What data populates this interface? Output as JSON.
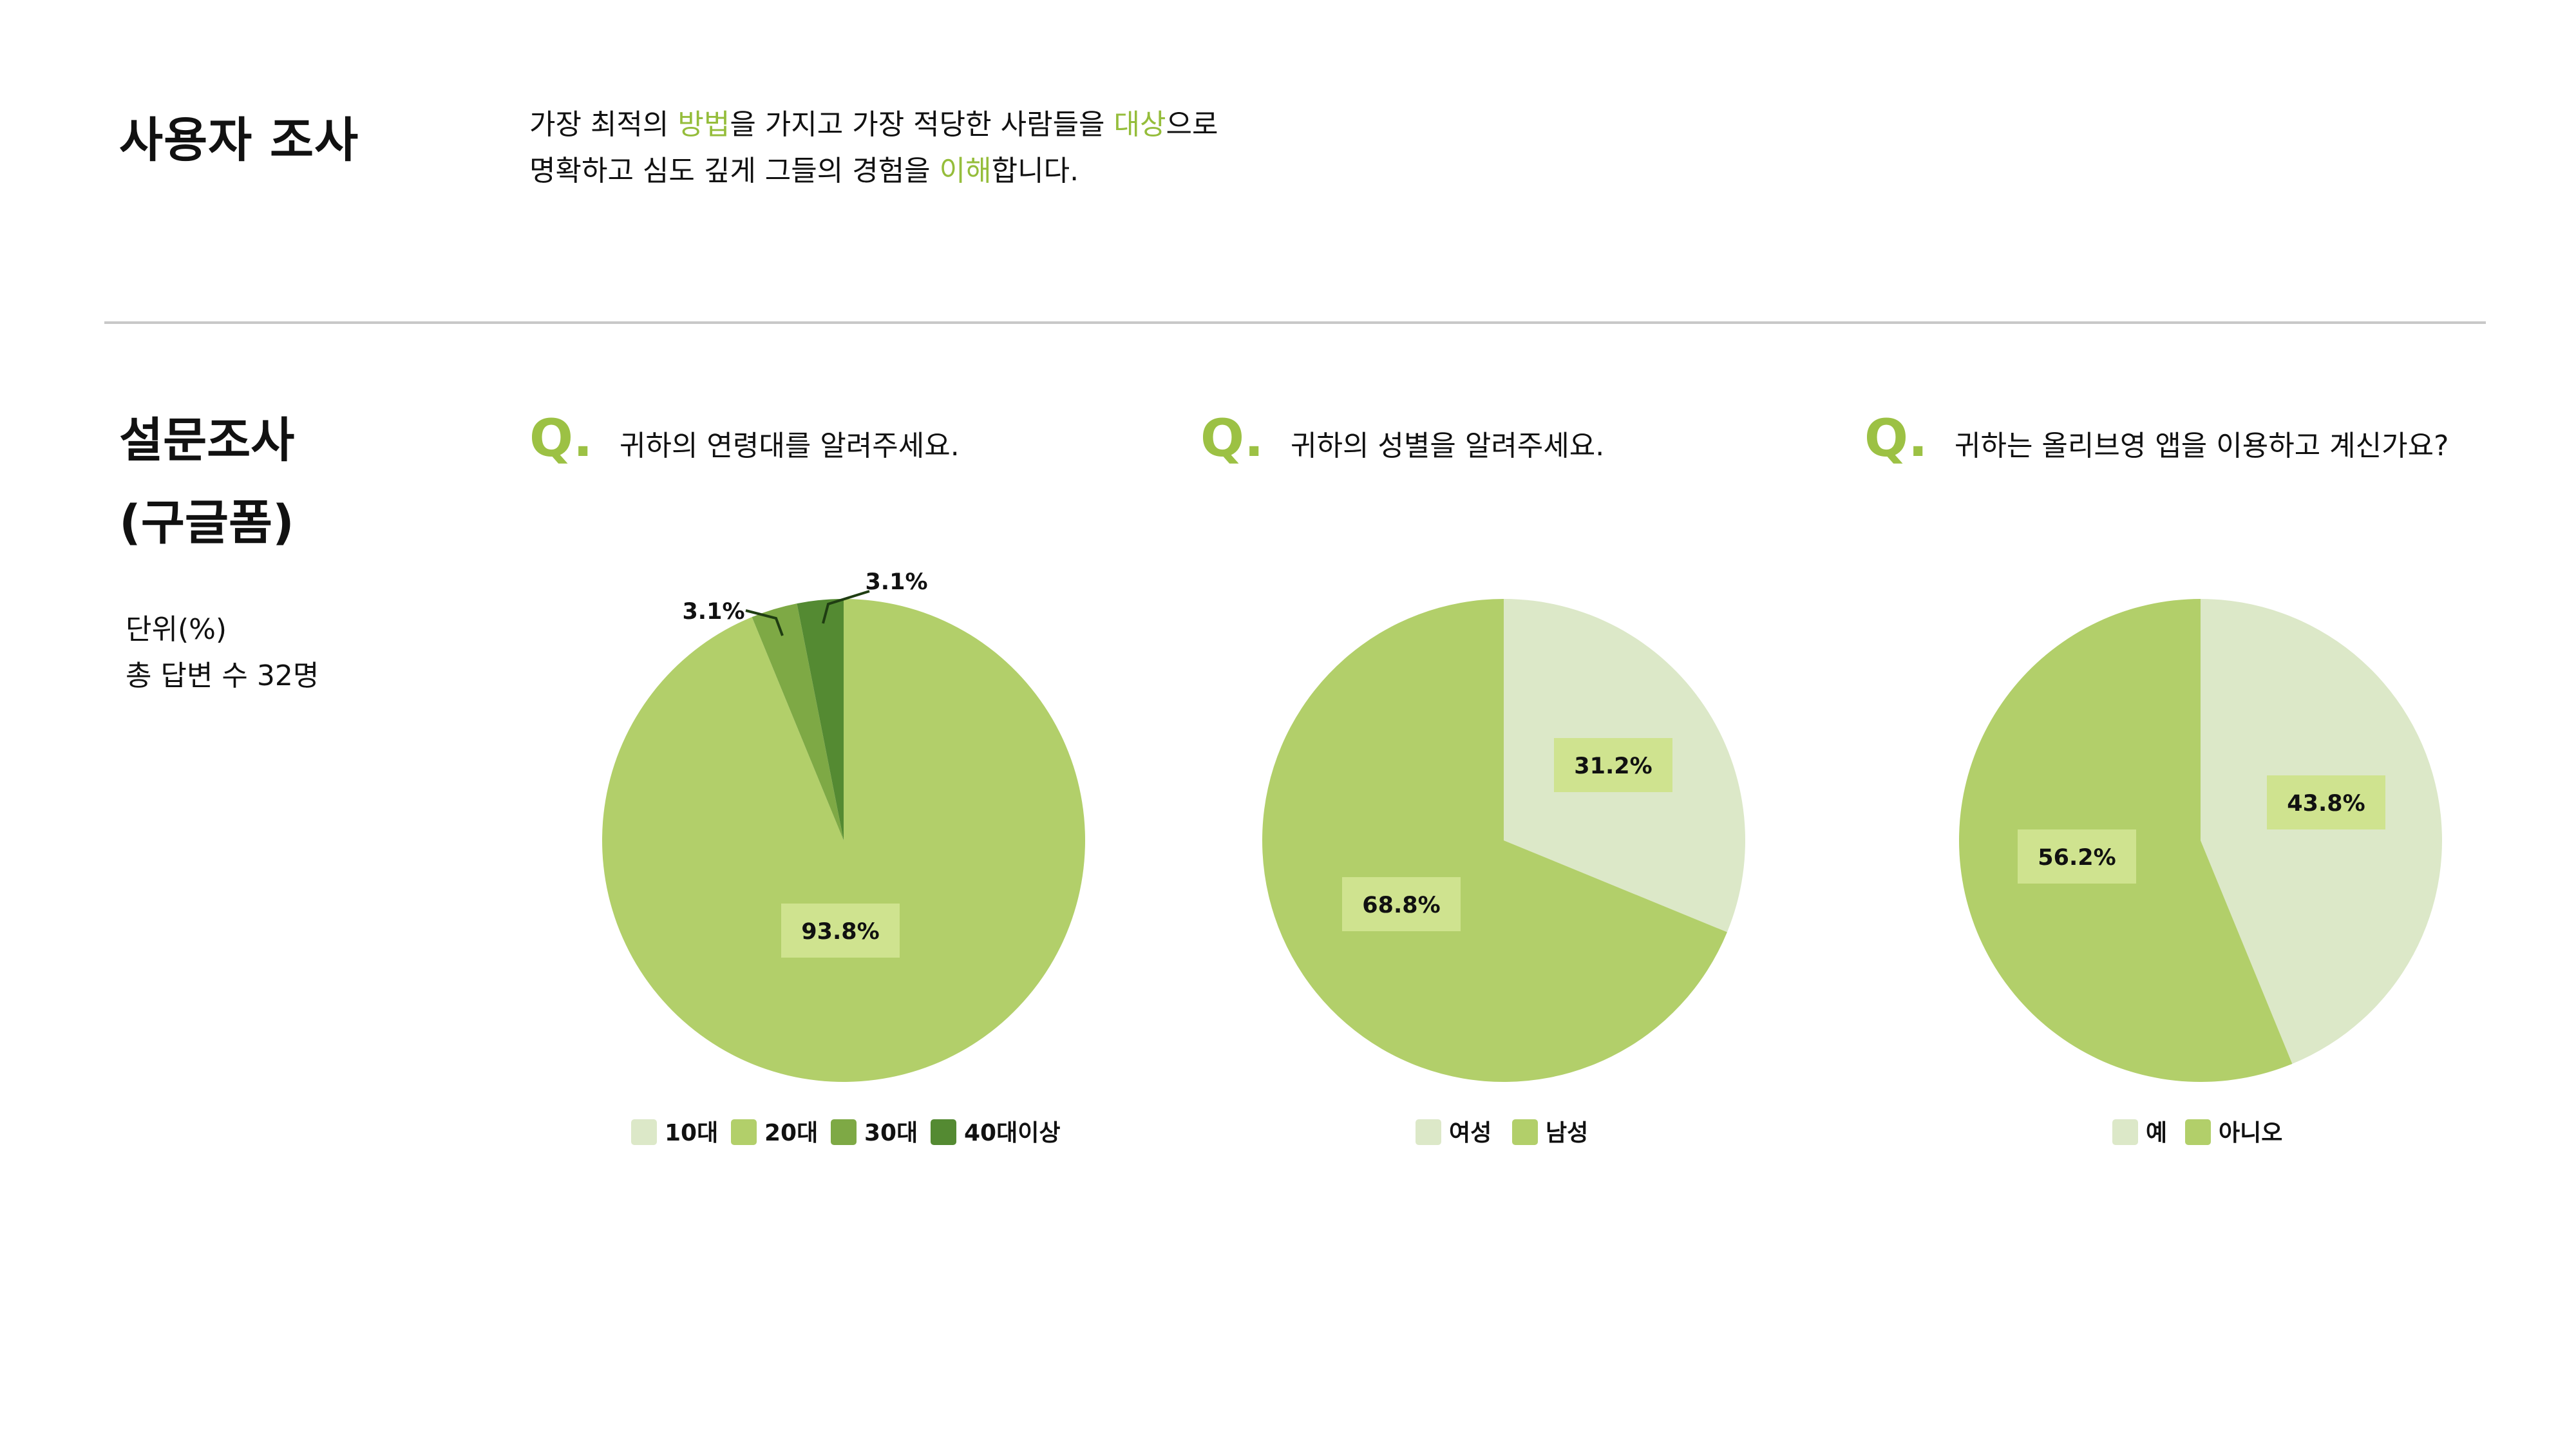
{
  "header": {
    "title": "사용자 조사",
    "intro_line1": [
      {
        "text": "가장 최적의 ",
        "accent": false
      },
      {
        "text": "방법",
        "accent": true
      },
      {
        "text": "을 가지고 가장 적당한 사람들을 ",
        "accent": false
      },
      {
        "text": "대상",
        "accent": true
      },
      {
        "text": "으로",
        "accent": false
      }
    ],
    "intro_line2": [
      {
        "text": "명확하고 심도 깊게 그들의 경험을 ",
        "accent": false
      },
      {
        "text": "이해",
        "accent": true
      },
      {
        "text": "합니다.",
        "accent": false
      }
    ]
  },
  "survey": {
    "title_line1": "설문조사",
    "title_line2": "(구글폼)",
    "unit": "단위(%)",
    "total": "총 답변 수 32명"
  },
  "colors": {
    "accent": "#95bd3b",
    "q_mark": "#9cc144",
    "light": "#dce8c8",
    "main": "#b2cf6a",
    "mid": "#7ea945",
    "dark": "#548a32",
    "label_box": "#cfe38f"
  },
  "chart_data": [
    {
      "type": "pie",
      "q_mark": "Q.",
      "title": "귀하의 연령대를 알려주세요.",
      "categories": [
        "10대",
        "20대",
        "30대",
        "40대이상"
      ],
      "values": [
        0,
        93.8,
        3.1,
        3.1
      ],
      "data_labels": [
        "",
        "93.8%",
        "3.1%",
        "3.1%"
      ],
      "colors": [
        "#dce8c8",
        "#b2cf6a",
        "#7ea945",
        "#548a32"
      ],
      "legend": "bottom"
    },
    {
      "type": "pie",
      "q_mark": "Q.",
      "title": "귀하의 성별을 알려주세요.",
      "categories": [
        "여성",
        "남성"
      ],
      "values": [
        31.2,
        68.8
      ],
      "data_labels": [
        "31.2%",
        "68.8%"
      ],
      "colors": [
        "#dce8c8",
        "#b2cf6a"
      ],
      "legend": "bottom"
    },
    {
      "type": "pie",
      "q_mark": "Q.",
      "title": "귀하는 올리브영 앱을 이용하고 계신가요?",
      "categories": [
        "예",
        "아니오"
      ],
      "values": [
        43.8,
        56.2
      ],
      "data_labels": [
        "43.8%",
        "56.2%"
      ],
      "colors": [
        "#dce8c8",
        "#b2cf6a"
      ],
      "legend": "bottom"
    }
  ]
}
